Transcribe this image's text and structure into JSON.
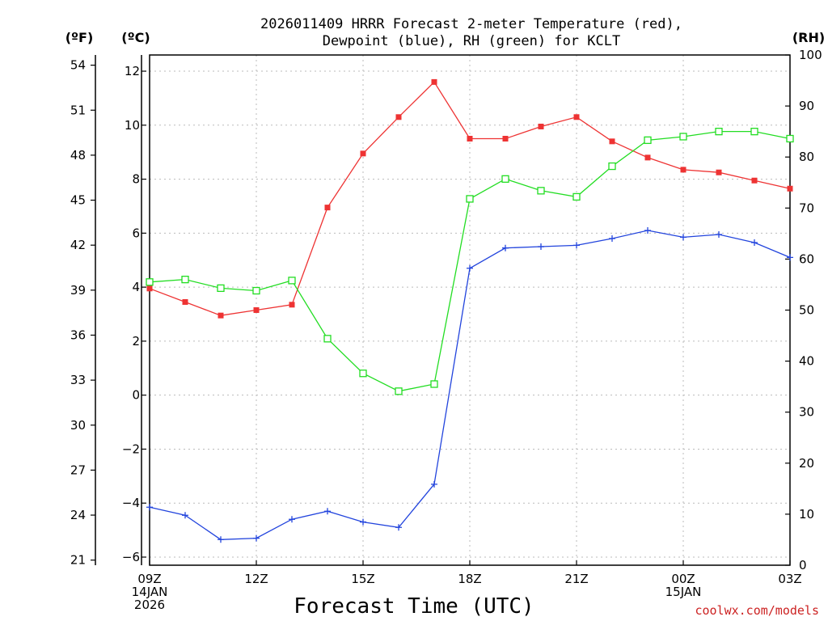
{
  "chart_data": {
    "type": "line",
    "title_line1": "2026011409 HRRR Forecast 2-meter Temperature (red),",
    "title_line2": "Dewpoint (blue), RH (green) for KCLT",
    "xlabel": "Forecast Time (UTC)",
    "left_unit_outer": "(ºF)",
    "left_unit_inner": "(ºC)",
    "right_unit": "(RH)",
    "credit": "coolwx.com/models",
    "x_hours": [
      9,
      10,
      11,
      12,
      13,
      14,
      15,
      16,
      17,
      18,
      19,
      20,
      21,
      22,
      23,
      24,
      25,
      26,
      27
    ],
    "xlim": [
      9,
      27
    ],
    "celsius_ylim": [
      -6.3,
      12.6
    ],
    "rh_ylim": [
      0,
      100
    ],
    "x_ticks": [
      {
        "hour": 9,
        "lines": [
          "09Z",
          "14JAN",
          "2026"
        ]
      },
      {
        "hour": 12,
        "lines": [
          "12Z"
        ]
      },
      {
        "hour": 15,
        "lines": [
          "15Z"
        ]
      },
      {
        "hour": 18,
        "lines": [
          "18Z"
        ]
      },
      {
        "hour": 21,
        "lines": [
          "21Z"
        ]
      },
      {
        "hour": 24,
        "lines": [
          "00Z",
          "15JAN"
        ]
      },
      {
        "hour": 27,
        "lines": [
          "03Z"
        ]
      }
    ],
    "celsius_ticks": [
      -6,
      -4,
      -2,
      0,
      2,
      4,
      6,
      8,
      10,
      12
    ],
    "fahrenheit_ticks": [
      21,
      24,
      27,
      30,
      33,
      36,
      39,
      42,
      45,
      48,
      51,
      54
    ],
    "rh_ticks": [
      0,
      10,
      20,
      30,
      40,
      50,
      60,
      70,
      80,
      90,
      100
    ],
    "grid": true,
    "series": [
      {
        "name": "Temperature",
        "color": "#ee3333",
        "marker": "filled-square",
        "axis": "celsius",
        "values": [
          3.95,
          3.45,
          2.95,
          3.15,
          3.35,
          6.95,
          8.95,
          10.3,
          11.6,
          9.5,
          9.5,
          9.95,
          10.3,
          9.4,
          8.8,
          8.35,
          8.25,
          7.95,
          7.65
        ]
      },
      {
        "name": "Dewpoint",
        "color": "#2244dd",
        "marker": "plus",
        "axis": "celsius",
        "values": [
          -4.15,
          -4.45,
          -5.35,
          -5.3,
          -4.6,
          -4.3,
          -4.7,
          -4.9,
          -3.3,
          4.7,
          5.45,
          5.5,
          5.55,
          5.8,
          6.1,
          5.85,
          5.95,
          5.65,
          5.1
        ]
      },
      {
        "name": "RH",
        "color": "#22dd22",
        "marker": "open-square",
        "axis": "rh",
        "values": [
          55.5,
          56,
          54.3,
          53.8,
          55.8,
          44.4,
          37.6,
          34.1,
          35.5,
          71.8,
          75.7,
          73.4,
          72.2,
          78.2,
          83.3,
          84,
          85,
          85,
          83.6
        ]
      }
    ]
  }
}
